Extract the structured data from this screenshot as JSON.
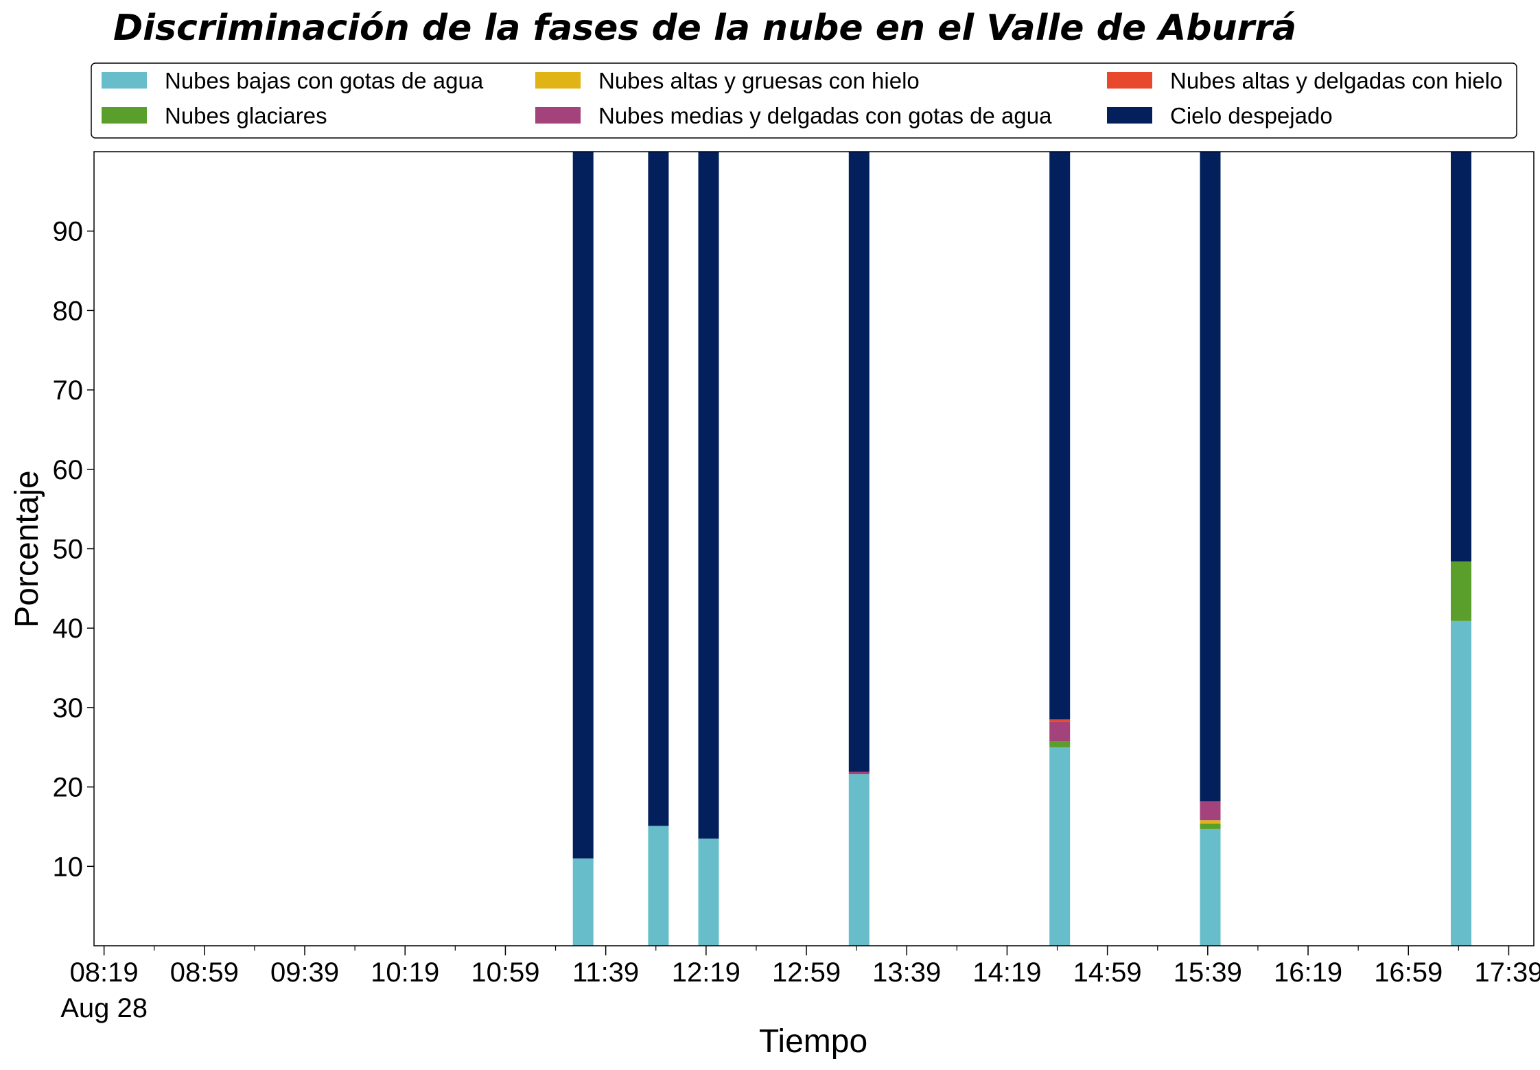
{
  "chart_data": {
    "type": "bar",
    "stacked": true,
    "title": "Discriminación de la fases de la nube en el Valle de Aburrá",
    "xlabel": "Tiempo",
    "ylabel": "Porcentaje",
    "ylim": [
      0,
      100
    ],
    "yticks": [
      10,
      20,
      30,
      40,
      50,
      60,
      70,
      80,
      90
    ],
    "xlim": [
      "08:19",
      "17:49"
    ],
    "xtick_labels": [
      "08:19",
      "08:59",
      "09:39",
      "10:19",
      "10:59",
      "11:39",
      "12:19",
      "12:59",
      "13:39",
      "14:19",
      "14:59",
      "15:39",
      "16:19",
      "16:59",
      "17:39"
    ],
    "x_date_label": "Aug 28",
    "grid": false,
    "legend_position": "top",
    "categories": [
      "11:30",
      "12:00",
      "12:20",
      "13:20",
      "14:40",
      "15:40",
      "17:20"
    ],
    "series": [
      {
        "name": "Nubes bajas con gotas de agua",
        "color": "#67bdc9",
        "values": [
          11.0,
          15.1,
          13.5,
          21.6,
          25.0,
          14.7,
          40.9
        ]
      },
      {
        "name": "Nubes glaciares",
        "color": "#5a9e2b",
        "values": [
          0,
          0,
          0,
          0,
          0.7,
          0.7,
          7.5
        ]
      },
      {
        "name": "Nubes altas y gruesas con hielo",
        "color": "#e1b416",
        "values": [
          0,
          0,
          0,
          0,
          0,
          0.4,
          0
        ]
      },
      {
        "name": "Nubes medias y delgadas con gotas de agua",
        "color": "#a3427b",
        "values": [
          0,
          0,
          0,
          0.3,
          2.5,
          2.4,
          0
        ]
      },
      {
        "name": "Nubes altas y delgadas con hielo",
        "color": "#e8482c",
        "values": [
          0,
          0,
          0,
          0,
          0.3,
          0,
          0
        ]
      },
      {
        "name": "Cielo despejado",
        "color": "#03205c",
        "values": [
          89.0,
          84.9,
          86.5,
          78.1,
          71.5,
          81.8,
          51.6
        ]
      }
    ]
  }
}
